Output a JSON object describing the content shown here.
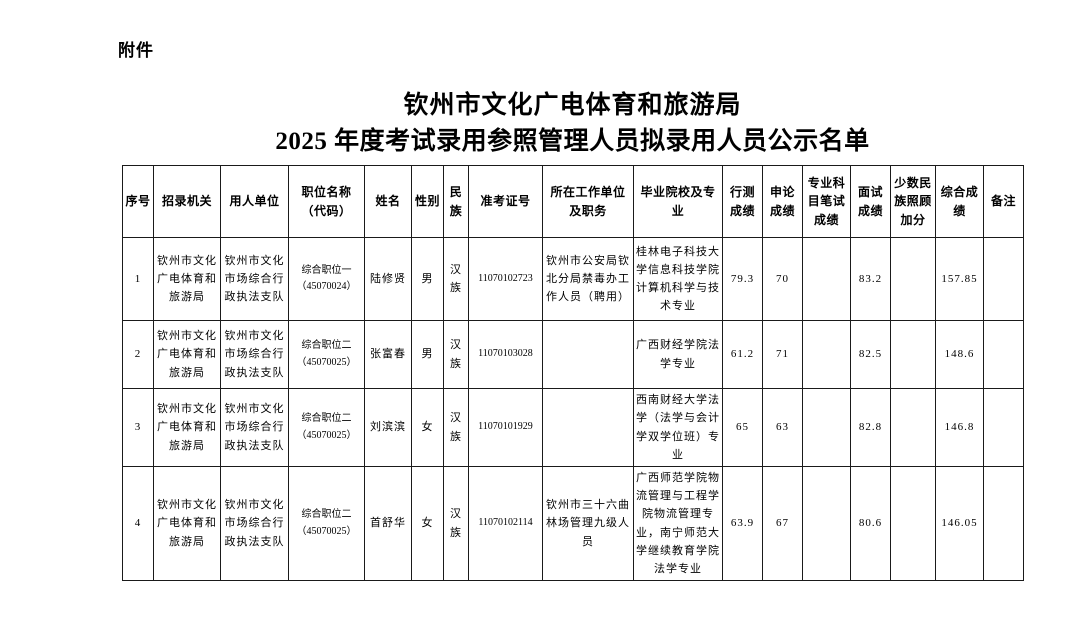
{
  "document": {
    "attachment_label": "附件",
    "title_line1": "钦州市文化广电体育和旅游局",
    "title_line2": "2025 年度考试录用参照管理人员拟录用人员公示名单"
  },
  "table": {
    "headers": [
      "序号",
      "招录机关",
      "用人单位",
      "职位名称（代码）",
      "姓名",
      "性别",
      "民族",
      "准考证号",
      "所在工作单位及职务",
      "毕业院校及专业",
      "行测成绩",
      "申论成绩",
      "专业科目笔试成绩",
      "面试成绩",
      "少数民族照顾加分",
      "综合成绩",
      "备注"
    ],
    "rows": [
      [
        "1",
        "钦州市文化广电体育和旅游局",
        "钦州市文化市场综合行政执法支队",
        "综合职位一（45070024）",
        "陆修贤",
        "男",
        "汉族",
        "11070102723",
        "钦州市公安局钦北分局禁毒办工作人员（聘用）",
        "桂林电子科技大学信息科技学院计算机科学与技术专业",
        "79.3",
        "70",
        "",
        "83.2",
        "",
        "157.85",
        ""
      ],
      [
        "2",
        "钦州市文化广电体育和旅游局",
        "钦州市文化市场综合行政执法支队",
        "综合职位二（45070025）",
        "张富春",
        "男",
        "汉族",
        "11070103028",
        "",
        "广西财经学院法学专业",
        "61.2",
        "71",
        "",
        "82.5",
        "",
        "148.6",
        ""
      ],
      [
        "3",
        "钦州市文化广电体育和旅游局",
        "钦州市文化市场综合行政执法支队",
        "综合职位二（45070025）",
        "刘滨滨",
        "女",
        "汉族",
        "11070101929",
        "",
        "西南财经大学法学（法学与会计学双学位班）专业",
        "65",
        "63",
        "",
        "82.8",
        "",
        "146.8",
        ""
      ],
      [
        "4",
        "钦州市文化广电体育和旅游局",
        "钦州市文化市场综合行政执法支队",
        "综合职位二（45070025）",
        "首舒华",
        "女",
        "汉族",
        "11070102114",
        "钦州市三十六曲林场管理九级人员",
        "广西师范学院物流管理与工程学院物流管理专业，南宁师范大学继续教育学院法学专业",
        "63.9",
        "67",
        "",
        "80.6",
        "",
        "146.05",
        ""
      ]
    ]
  }
}
